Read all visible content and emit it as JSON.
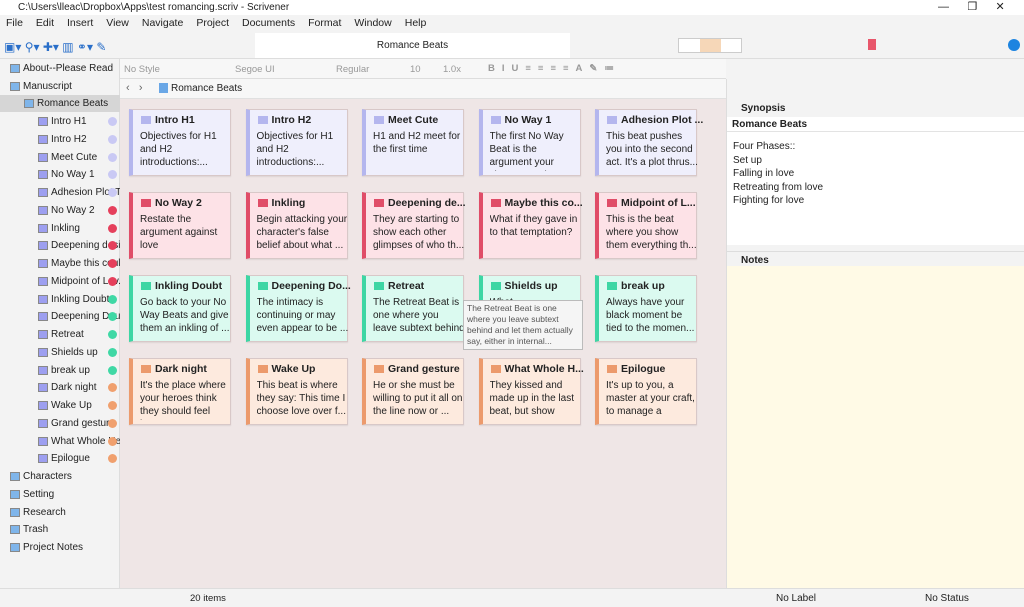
{
  "window": {
    "title": "C:\\Users\\lleac\\Dropbox\\Apps\\test romancing.scriv - Scrivener"
  },
  "menu": [
    "File",
    "Edit",
    "Insert",
    "View",
    "Navigate",
    "Project",
    "Documents",
    "Format",
    "Window",
    "Help"
  ],
  "toolbar": {
    "document_title": "Romance Beats"
  },
  "format_bar": {
    "style": "No Style",
    "font": "Segoe UI",
    "weight": "Regular",
    "size": "10",
    "spacing": "1.0x"
  },
  "binder": {
    "items": [
      {
        "label": "About--Please Read",
        "level": 0,
        "color": null
      },
      {
        "label": "Manuscript",
        "level": 0,
        "color": null
      },
      {
        "label": "Romance Beats",
        "level": 1,
        "color": null
      },
      {
        "label": "Intro H1",
        "level": 2,
        "color": "#c9c9f4"
      },
      {
        "label": "Intro H2",
        "level": 2,
        "color": "#c9c9f4"
      },
      {
        "label": "Meet Cute",
        "level": 2,
        "color": "#c9c9f4"
      },
      {
        "label": "No Way 1",
        "level": 2,
        "color": "#c9c9f4"
      },
      {
        "label": "Adhesion Plot Th...",
        "level": 2,
        "color": "#c9c9f4"
      },
      {
        "label": "No Way 2",
        "level": 2,
        "color": "#e5405c"
      },
      {
        "label": "Inkling",
        "level": 2,
        "color": "#e5405c"
      },
      {
        "label": "Deepening desire",
        "level": 2,
        "color": "#e5405c"
      },
      {
        "label": "Maybe this coul...",
        "level": 2,
        "color": "#e5405c"
      },
      {
        "label": "Midpoint of Lov...",
        "level": 2,
        "color": "#e5405c"
      },
      {
        "label": "Inkling Doubt",
        "level": 2,
        "color": "#3fd8a5"
      },
      {
        "label": "Deepening Doubt",
        "level": 2,
        "color": "#3fd8a5"
      },
      {
        "label": "Retreat",
        "level": 2,
        "color": "#3fd8a5"
      },
      {
        "label": "Shields up",
        "level": 2,
        "color": "#3fd8a5"
      },
      {
        "label": "break up",
        "level": 2,
        "color": "#3fd8a5"
      },
      {
        "label": "Dark night",
        "level": 2,
        "color": "#f0a06e"
      },
      {
        "label": "Wake Up",
        "level": 2,
        "color": "#f0a06e"
      },
      {
        "label": "Grand gesture",
        "level": 2,
        "color": "#f0a06e"
      },
      {
        "label": "What Whole Hea...",
        "level": 2,
        "color": "#f0a06e"
      },
      {
        "label": "Epilogue",
        "level": 2,
        "color": "#f0a06e"
      },
      {
        "label": "Characters",
        "level": 0,
        "color": null
      },
      {
        "label": "Setting",
        "level": 0,
        "color": null
      },
      {
        "label": "Research",
        "level": 0,
        "color": null
      },
      {
        "label": "Trash",
        "level": 0,
        "color": null
      },
      {
        "label": "Project Notes",
        "level": 0,
        "color": null
      }
    ]
  },
  "editor": {
    "header": "Romance Beats",
    "item_count": "20 items",
    "cards": [
      {
        "title": "Intro H1",
        "synopsis": "Objectives for H1 and H2 introductions:...",
        "color": "#b4b6ee",
        "bg": "#efeffc"
      },
      {
        "title": "Intro H2",
        "synopsis": "Objectives for H1 and H2 introductions:...",
        "color": "#b4b6ee",
        "bg": "#efeffc"
      },
      {
        "title": "Meet Cute",
        "synopsis": "H1 and H2 meet for the first time",
        "color": "#b4b6ee",
        "bg": "#efeffc"
      },
      {
        "title": "No Way 1",
        "synopsis": "The first No Way Beat is the argument your character voic...",
        "color": "#b4b6ee",
        "bg": "#efeffc"
      },
      {
        "title": "Adhesion Plot ...",
        "synopsis": "This beat pushes you into the second act. It's a plot thrus...",
        "color": "#b4b6ee",
        "bg": "#efeffc"
      },
      {
        "title": "No Way 2",
        "synopsis": "Restate the argument against love",
        "color": "#e04d68",
        "bg": "#fde2e7"
      },
      {
        "title": "Inkling",
        "synopsis": "Begin attacking your character's false belief about what ...",
        "color": "#e04d68",
        "bg": "#fde2e7"
      },
      {
        "title": "Deepening de...",
        "synopsis": "They are starting to show each other glimpses of who th...",
        "color": "#e04d68",
        "bg": "#fde2e7"
      },
      {
        "title": "Maybe this co...",
        "synopsis": "What if they gave in to that temptation?",
        "color": "#e04d68",
        "bg": "#fde2e7"
      },
      {
        "title": "Midpoint of L...",
        "synopsis": "This is the beat where you show them everything th...",
        "color": "#e04d68",
        "bg": "#fde2e7"
      },
      {
        "title": "Inkling Doubt",
        "synopsis": "Go back to your No Way Beats and give them an inkling of ...",
        "color": "#3dd6a4",
        "bg": "#dbfaf0"
      },
      {
        "title": "Deepening Do...",
        "synopsis": "The intimacy is continuing or may even appear to be ...",
        "color": "#3dd6a4",
        "bg": "#dbfaf0"
      },
      {
        "title": "Retreat",
        "synopsis": "The Retreat Beat is one where you leave subtext behind an...",
        "color": "#3dd6a4",
        "bg": "#dbfaf0"
      },
      {
        "title": "Shields up",
        "synopsis": "What...",
        "color": "#3dd6a4",
        "bg": "#dbfaf0"
      },
      {
        "title": "break up",
        "synopsis": "Always have your black moment be tied to the momen...",
        "color": "#3dd6a4",
        "bg": "#dbfaf0"
      },
      {
        "title": "Dark night",
        "synopsis": "It's the place where your heroes think they should feel be...",
        "color": "#ec9a6c",
        "bg": "#fdeade"
      },
      {
        "title": "Wake Up",
        "synopsis": "This beat is where they say: This time I choose love over f...",
        "color": "#ec9a6c",
        "bg": "#fdeade"
      },
      {
        "title": "Grand gesture",
        "synopsis": "He or she must be willing to put it all on the line now or ...",
        "color": "#ec9a6c",
        "bg": "#fdeade"
      },
      {
        "title": "What Whole H...",
        "synopsis": "They kissed and made up in the last beat, but show you...",
        "color": "#ec9a6c",
        "bg": "#fdeade"
      },
      {
        "title": "Epilogue",
        "synopsis": "It's up to you, a master at your craft, to manage a scene...",
        "color": "#ec9a6c",
        "bg": "#fdeade"
      }
    ],
    "tooltip": "The Retreat Beat is one where you leave subtext behind and let them actually say, either in internal..."
  },
  "inspector": {
    "synopsis_header": "Synopsis",
    "doc_title": "Romance Beats",
    "synopsis_lines": [
      "Four Phases::",
      "Set up",
      "Falling in love",
      "Retreating from love",
      "Fighting for love"
    ],
    "notes_header": "Notes",
    "label": "No Label",
    "status": "No Status"
  }
}
